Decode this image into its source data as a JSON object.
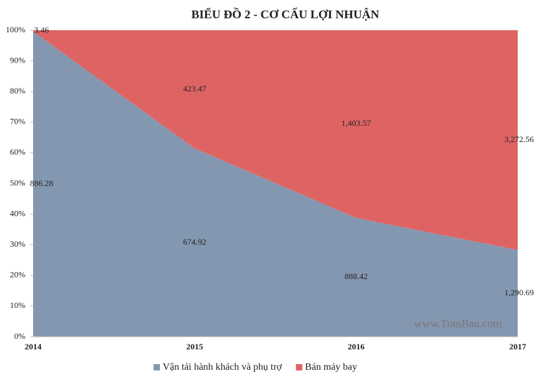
{
  "chart_data": {
    "type": "area",
    "stacking": "percent",
    "title": "BIỂU ĐỒ 2 - CƠ CẤU LỢI NHUẬN",
    "annotation": "www.TranBau.com",
    "categories": [
      "2014",
      "2015",
      "2016",
      "2017"
    ],
    "series": [
      {
        "name": "Vận tải hành khách và phụ trợ",
        "color": "#8497b0",
        "values": [
          886.28,
          674.92,
          888.42,
          1290.69
        ],
        "value_labels": [
          "886.28",
          "674.92",
          "888.42",
          "1,290.69"
        ]
      },
      {
        "name": "Bán máy bay",
        "color": "#de6464",
        "values": [
          3.46,
          423.47,
          1403.57,
          3272.56
        ],
        "value_labels": [
          "3.46",
          "423.47",
          "1,403.57",
          "3,272.56"
        ]
      }
    ],
    "ylim": [
      0,
      100
    ],
    "yticks": [
      {
        "value": 0,
        "label": "0%"
      },
      {
        "value": 10,
        "label": "10%"
      },
      {
        "value": 20,
        "label": "20%"
      },
      {
        "value": 30,
        "label": "30%"
      },
      {
        "value": 40,
        "label": "40%"
      },
      {
        "value": 50,
        "label": "50%"
      },
      {
        "value": 60,
        "label": "60%"
      },
      {
        "value": 70,
        "label": "70%"
      },
      {
        "value": 80,
        "label": "80%"
      },
      {
        "value": 90,
        "label": "90%"
      },
      {
        "value": 100,
        "label": "100%"
      }
    ],
    "legend": "bottom"
  }
}
